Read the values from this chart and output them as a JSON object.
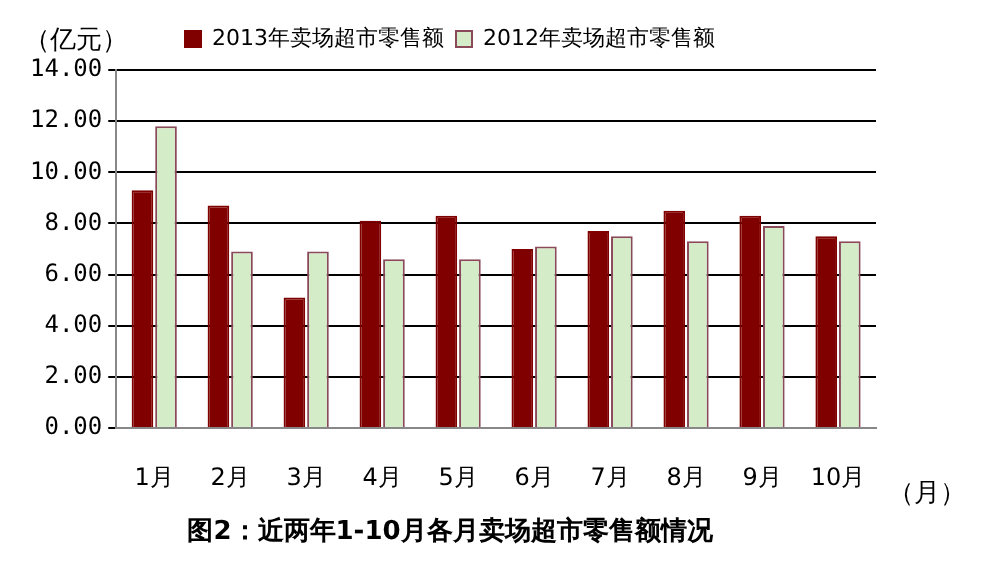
{
  "chart_data": {
    "type": "bar",
    "title": "图2：近两年1-10月各月卖场超市零售额情况",
    "ylabel": "（亿元）",
    "xlabel": "（月）",
    "categories": [
      "1月",
      "2月",
      "3月",
      "4月",
      "5月",
      "6月",
      "7月",
      "8月",
      "9月",
      "10月"
    ],
    "series": [
      {
        "name": "2013年卖场超市零售额",
        "color": "#800000",
        "values": [
          9.3,
          8.7,
          5.1,
          8.1,
          8.3,
          7.0,
          7.7,
          8.5,
          8.3,
          7.5
        ]
      },
      {
        "name": "2012年卖场超市零售额",
        "color": "#d4ecc8",
        "values": [
          11.8,
          6.9,
          6.9,
          6.6,
          6.6,
          7.1,
          7.5,
          7.3,
          7.9,
          7.3
        ]
      }
    ],
    "ylim": [
      0,
      14
    ],
    "yticks": [
      {
        "value": 0,
        "label": "0.00"
      },
      {
        "value": 2,
        "label": "2.00"
      },
      {
        "value": 4,
        "label": "4.00"
      },
      {
        "value": 6,
        "label": "6.00"
      },
      {
        "value": 8,
        "label": "8.00"
      },
      {
        "value": 10,
        "label": "10.00"
      },
      {
        "value": 12,
        "label": "12.00"
      },
      {
        "value": 14,
        "label": "14.00"
      }
    ],
    "grid": "y",
    "legend": "top"
  }
}
